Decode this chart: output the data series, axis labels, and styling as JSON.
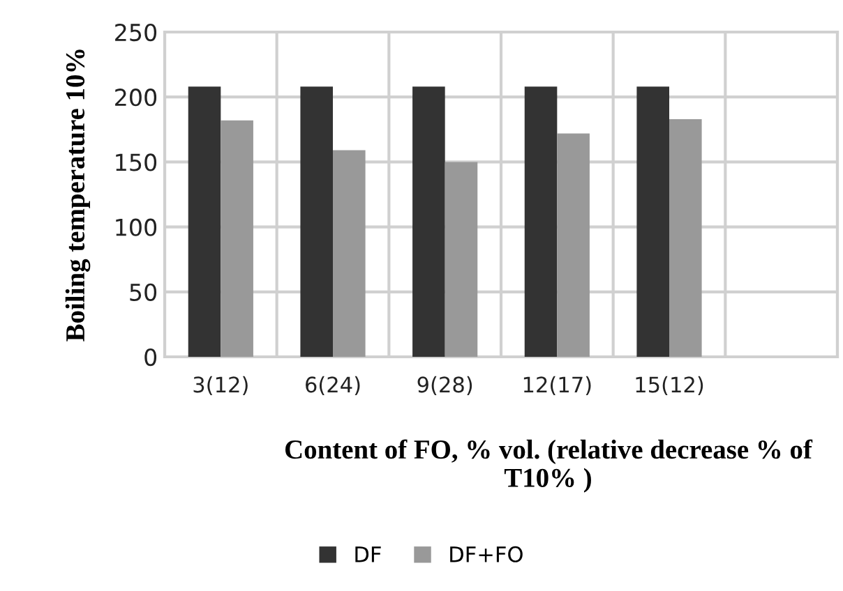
{
  "chart_data": {
    "type": "bar",
    "xlabel": "Content of FO, % vol. (relative decrease % of T10% )",
    "ylabel": "Boiling temperature 10%",
    "categories": [
      "3(12)",
      "6(24)",
      "9(28)",
      "12(17)",
      "15(12)",
      null
    ],
    "series": [
      {
        "name": "DF",
        "color": "#333333",
        "values": [
          208,
          208,
          208,
          208,
          208,
          null
        ]
      },
      {
        "name": "DF+FO",
        "color": "#999999",
        "values": [
          182,
          159,
          150,
          172,
          183,
          null
        ]
      }
    ],
    "ylim": [
      0,
      250
    ],
    "yticks": [
      0,
      50,
      100,
      150,
      200,
      250
    ],
    "grid": true,
    "legend": "bottom"
  }
}
